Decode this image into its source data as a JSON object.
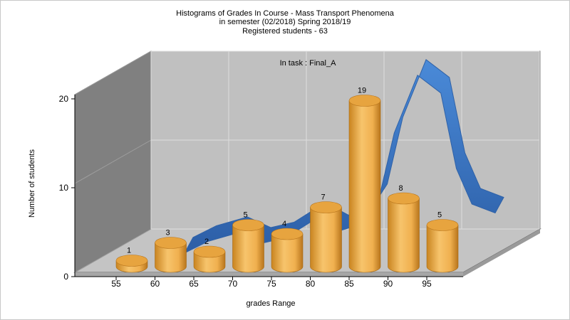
{
  "chart_data": {
    "type": "bar",
    "title_lines": [
      "Histograms of Grades  In Course - Mass Transport Phenomena",
      "in semester  (02/2018) Spring 2018/19",
      "Registered students - 63"
    ],
    "annotation": "In task : Final_A",
    "xlabel": "grades Range",
    "ylabel": "Number of students",
    "x_ticks": [
      "55",
      "60",
      "65",
      "70",
      "75",
      "80",
      "85",
      "90",
      "95"
    ],
    "y_ticks": [
      "0",
      "10",
      "20"
    ],
    "ylim": [
      0,
      20
    ],
    "series": [
      {
        "style": "3d-cylinder",
        "values": [
          1,
          3,
          2,
          5,
          4,
          7,
          19,
          8,
          5
        ],
        "data_labels": [
          "1",
          "3",
          "2",
          "5",
          "4",
          "7",
          "19",
          "8",
          "5"
        ]
      }
    ],
    "curve": {
      "style": "3d-ribbon",
      "x": [
        60,
        63,
        67,
        70,
        73,
        77,
        80,
        83,
        85,
        87,
        90,
        93,
        95,
        97,
        100
      ],
      "y": [
        1.5,
        2.8,
        3.8,
        2.6,
        3.2,
        5.4,
        4.0,
        4.8,
        7.5,
        15.0,
        21.5,
        19.5,
        11.0,
        7.0,
        6.0
      ]
    },
    "grid": true,
    "colors": {
      "bar_front": "#f3b659",
      "bar_top": "#e7a43f",
      "ribbon": "#3a78cb",
      "ribbon_dark": "#2f62a8",
      "back_wall": "#c0c0c0",
      "side_wall": "#808080",
      "floor": "#c4c4c4",
      "grid": "#dedede"
    }
  }
}
